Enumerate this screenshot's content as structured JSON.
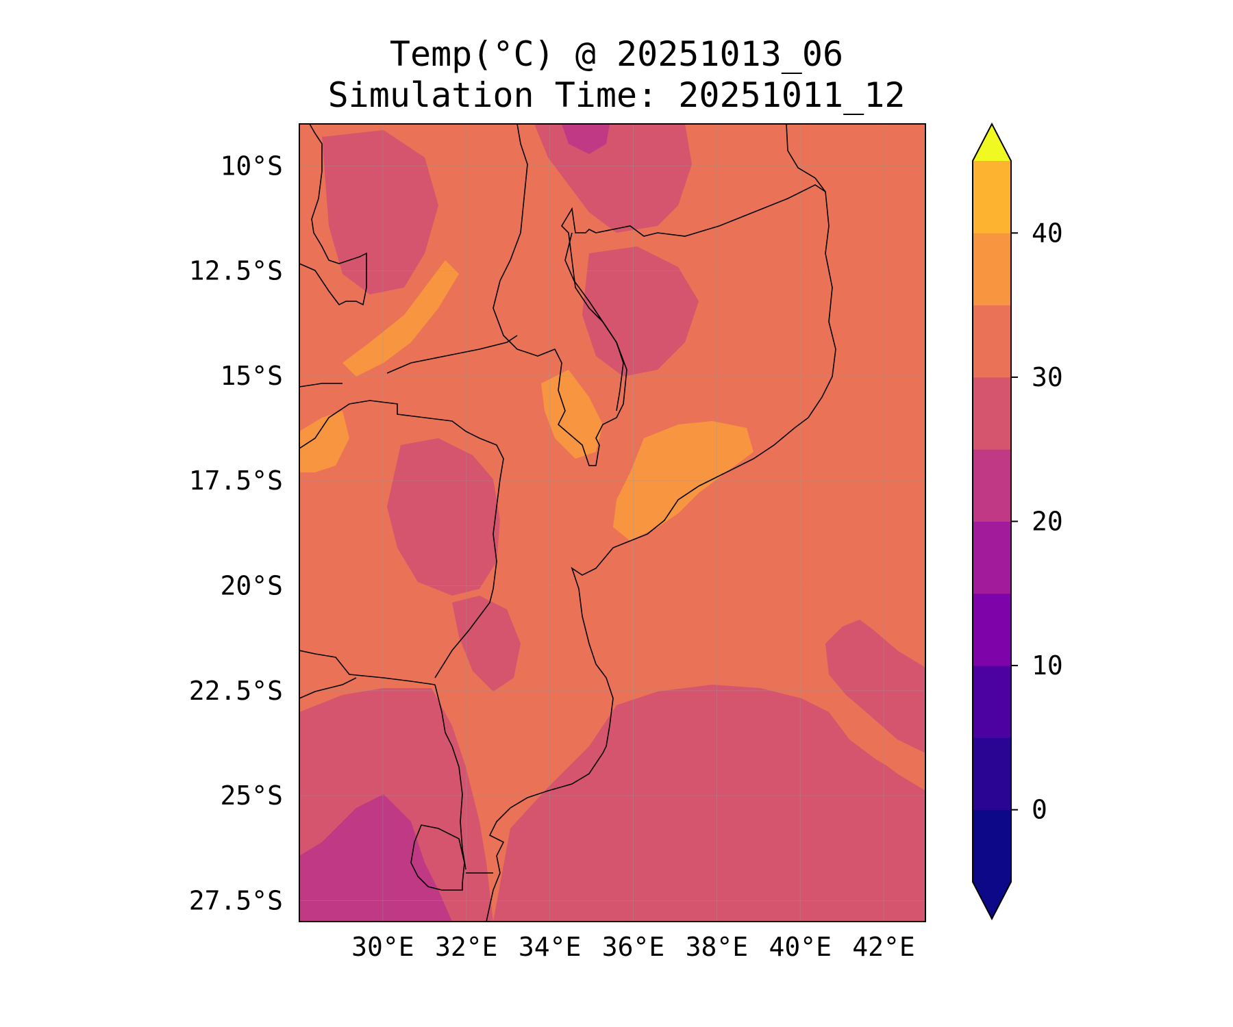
{
  "title": "Temp(°C) @ 20251013_06",
  "subtitle": "Simulation Time: 20251011_12",
  "map": {
    "lon_range": [
      28.0,
      43.0
    ],
    "lat_range": [
      -28.0,
      -9.0
    ],
    "lat_ticks": [
      {
        "value": -10.0,
        "label": "10°S"
      },
      {
        "value": -12.5,
        "label": "12.5°S"
      },
      {
        "value": -15.0,
        "label": "15°S"
      },
      {
        "value": -17.5,
        "label": "17.5°S"
      },
      {
        "value": -20.0,
        "label": "20°S"
      },
      {
        "value": -22.5,
        "label": "22.5°S"
      },
      {
        "value": -25.0,
        "label": "25°S"
      },
      {
        "value": -27.5,
        "label": "27.5°S"
      }
    ],
    "lon_ticks": [
      {
        "value": 30,
        "label": "30°E"
      },
      {
        "value": 32,
        "label": "32°E"
      },
      {
        "value": 34,
        "label": "34°E"
      },
      {
        "value": 36,
        "label": "36°E"
      },
      {
        "value": 38,
        "label": "38°E"
      },
      {
        "value": 40,
        "label": "40°E"
      },
      {
        "value": 42,
        "label": "42°E"
      }
    ],
    "gridlines": true
  },
  "colorbar": {
    "colormap": "plasma",
    "extend": "both",
    "levels": [
      -5,
      0,
      5,
      10,
      15,
      20,
      25,
      30,
      35,
      40,
      45
    ],
    "colors": [
      "#0d0887",
      "#2a0593",
      "#4c02a1",
      "#7e03a8",
      "#a11b9b",
      "#bf3984",
      "#d5546e",
      "#ea7257",
      "#f89540",
      "#fdb32f",
      "#f0f921"
    ],
    "under_color": "#0d0887",
    "over_color": "#f0f921",
    "ticks": [
      {
        "value": 0,
        "label": "0"
      },
      {
        "value": 10,
        "label": "10"
      },
      {
        "value": 20,
        "label": "20"
      },
      {
        "value": 30,
        "label": "30"
      },
      {
        "value": 40,
        "label": "40"
      }
    ]
  },
  "field_colors": {
    "ocean_warm": "#ea7257",
    "ocean_cool": "#d5546e",
    "land_cool": "#bf3984",
    "land_warm": "#f89540",
    "land_hot": "#fdb32f"
  }
}
